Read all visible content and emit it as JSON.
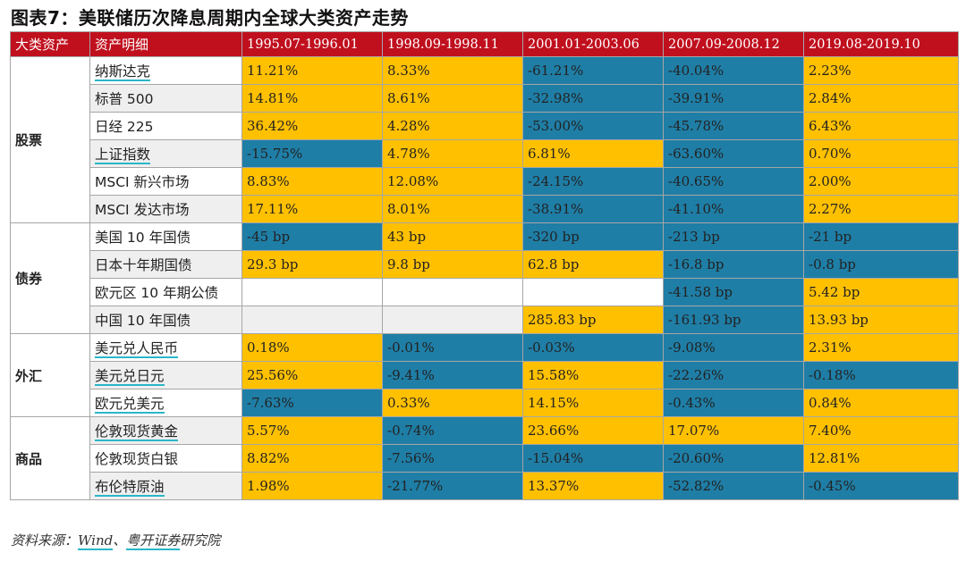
{
  "title": "图表7：美联储历次降息周期内全球大类资产走势",
  "headers": [
    "大类资产",
    "资产明细",
    "1995.07-1996.01",
    "1998.09-1998.11",
    "2001.01-2003.06",
    "2007.09-2008.12",
    "2019.08-2019.10"
  ],
  "colors": {
    "header": "#c0101e",
    "positive": "#ffc000",
    "negative": "#1f7ea6"
  },
  "groups": [
    {
      "category": "股票",
      "rows": [
        {
          "name": "纳斯达克",
          "link": true,
          "values": [
            "11.21%",
            "8.33%",
            "-61.21%",
            "-40.04%",
            "2.23%"
          ]
        },
        {
          "name": "标普 500",
          "link": false,
          "values": [
            "14.81%",
            "8.61%",
            "-32.98%",
            "-39.91%",
            "2.84%"
          ]
        },
        {
          "name": "日经 225",
          "link": false,
          "values": [
            "36.42%",
            "4.28%",
            "-53.00%",
            "-45.78%",
            "6.43%"
          ]
        },
        {
          "name": "上证指数",
          "link": true,
          "values": [
            "-15.75%",
            "4.78%",
            "6.81%",
            "-63.60%",
            "0.70%"
          ]
        },
        {
          "name": "MSCI 新兴市场",
          "link": false,
          "values": [
            "8.83%",
            "12.08%",
            "-24.15%",
            "-40.65%",
            "2.00%"
          ]
        },
        {
          "name": "MSCI 发达市场",
          "link": false,
          "values": [
            "17.11%",
            "8.01%",
            "-38.91%",
            "-41.10%",
            "2.27%"
          ]
        }
      ]
    },
    {
      "category": "债券",
      "rows": [
        {
          "name": "美国 10 年国债",
          "link": false,
          "values": [
            "-45 bp",
            "43 bp",
            "-320 bp",
            "-213 bp",
            "-21 bp"
          ]
        },
        {
          "name": "日本十年期国债",
          "link": false,
          "values": [
            "29.3 bp",
            "9.8 bp",
            "62.8 bp",
            "-16.8 bp",
            "-0.8 bp"
          ]
        },
        {
          "name": "欧元区 10 年期公债",
          "link": false,
          "values": [
            "",
            "",
            "",
            "-41.58 bp",
            "5.42 bp"
          ]
        },
        {
          "name": "中国 10 年国债",
          "link": false,
          "values": [
            "",
            "",
            "285.83 bp",
            "-161.93 bp",
            "13.93 bp"
          ]
        }
      ]
    },
    {
      "category": "外汇",
      "rows": [
        {
          "name": "美元兑人民币",
          "link": true,
          "values": [
            "0.18%",
            "-0.01%",
            "-0.03%",
            "-9.08%",
            "2.31%"
          ]
        },
        {
          "name": "美元兑日元",
          "link": true,
          "values": [
            "25.56%",
            "-9.41%",
            "15.58%",
            "-22.26%",
            "-0.18%"
          ]
        },
        {
          "name": "欧元兑美元",
          "link": true,
          "values": [
            "-7.63%",
            "0.33%",
            "14.15%",
            "-0.43%",
            "0.84%"
          ]
        }
      ]
    },
    {
      "category": "商品",
      "rows": [
        {
          "name": "伦敦现货黄金",
          "link": true,
          "values": [
            "5.57%",
            "-0.74%",
            "23.66%",
            "17.07%",
            "7.40%"
          ]
        },
        {
          "name": "伦敦现货白银",
          "link": false,
          "values": [
            "8.82%",
            "-7.56%",
            "-15.04%",
            "-20.60%",
            "12.81%"
          ]
        },
        {
          "name": "布伦特原油",
          "link": true,
          "values": [
            "1.98%",
            "-21.77%",
            "13.37%",
            "-52.82%",
            "-0.45%"
          ]
        }
      ]
    }
  ],
  "source": {
    "prefix": "资料来源：",
    "wind": "Wind",
    "sep": "、",
    "firm": "粤开证券",
    "suffix": "研究院"
  }
}
